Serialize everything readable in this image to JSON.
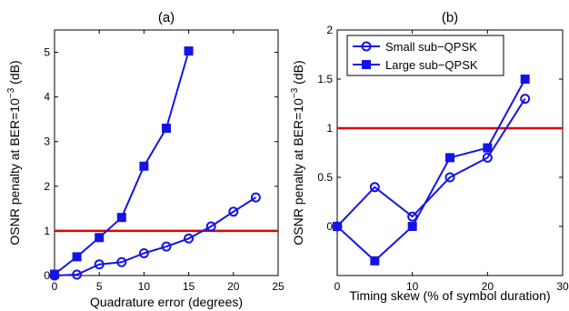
{
  "colors": {
    "series": "#1414e6",
    "threshold": "#e00000",
    "axis": "#000000"
  },
  "chart_data": [
    {
      "type": "line",
      "title": "(a)",
      "xlabel": "Quadrature error (degrees)",
      "ylabel": "OSNR penalty at BER=10",
      "ylabel_exp": "−3",
      "ylabel_unit": " (dB)",
      "xlim": [
        0,
        25
      ],
      "ylim": [
        0,
        5.5
      ],
      "xticks": [
        0,
        5,
        10,
        15,
        20,
        25
      ],
      "xtick_labels": [
        "0",
        "5",
        "10",
        "15",
        "20",
        "25"
      ],
      "yticks": [
        0,
        1,
        2,
        3,
        4,
        5
      ],
      "ytick_labels": [
        "0",
        "1",
        "2",
        "3",
        "4",
        "5"
      ],
      "threshold": 1,
      "series": [
        {
          "marker": "square",
          "x": [
            0,
            2.5,
            5,
            7.5,
            10,
            12.5,
            15
          ],
          "y": [
            0.03,
            0.42,
            0.85,
            1.3,
            2.45,
            3.3,
            5.03
          ]
        },
        {
          "marker": "circle",
          "x": [
            0,
            2.5,
            5,
            7.5,
            10,
            12.5,
            15,
            17.5,
            20,
            22.5
          ],
          "y": [
            0,
            0.02,
            0.25,
            0.3,
            0.5,
            0.65,
            0.83,
            1.1,
            1.43,
            1.75
          ]
        }
      ]
    },
    {
      "type": "line",
      "title": "(b)",
      "xlabel": "Timing skew (% of symbol duration)",
      "ylabel": "OSNR penalty at BER=10",
      "ylabel_exp": "−3",
      "ylabel_unit": " (dB)",
      "xlim": [
        0,
        30
      ],
      "ylim": [
        -0.5,
        2
      ],
      "xticks": [
        0,
        10,
        20,
        30
      ],
      "xtick_labels": [
        "0",
        "10",
        "20",
        "30"
      ],
      "yticks": [
        0,
        0.5,
        1,
        1.5,
        2
      ],
      "ytick_labels": [
        "0",
        "0.5",
        "1",
        "1.5",
        "2"
      ],
      "threshold": 1,
      "legend_position": "top-left",
      "series": [
        {
          "name": "Small sub−QPSK",
          "marker": "circle",
          "x": [
            0,
            5,
            10,
            15,
            20,
            25
          ],
          "y": [
            0,
            0.4,
            0.1,
            0.5,
            0.7,
            1.3
          ]
        },
        {
          "name": "Large sub−QPSK",
          "marker": "square",
          "x": [
            0,
            5,
            10,
            15,
            20,
            25
          ],
          "y": [
            0,
            -0.35,
            0,
            0.7,
            0.8,
            1.5
          ]
        }
      ]
    }
  ]
}
